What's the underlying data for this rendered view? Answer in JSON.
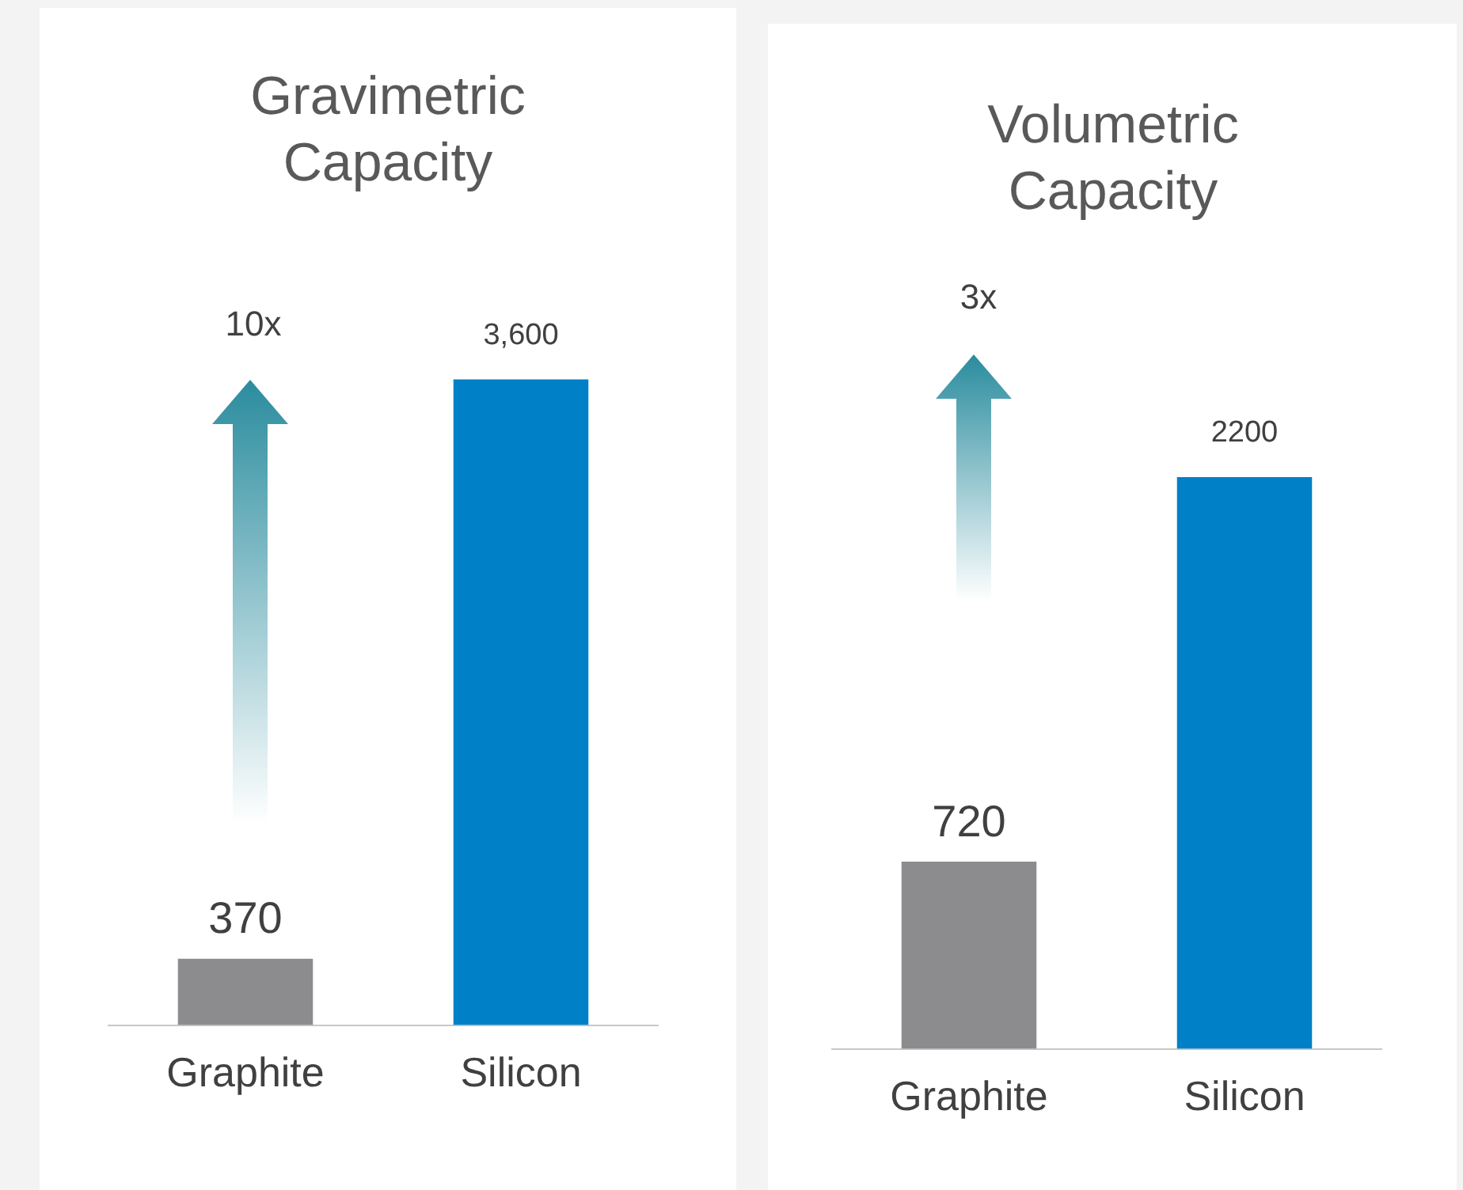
{
  "chart_data": [
    {
      "type": "bar",
      "title": "Gravimetric Capacity",
      "categories": [
        "Graphite",
        "Silicon"
      ],
      "values": [
        370,
        3600
      ],
      "colors": [
        "#8c8c8f",
        "#0080c6"
      ],
      "value_labels": [
        "370",
        "3,600"
      ],
      "annotations": [
        "10x"
      ],
      "grid": false,
      "legend": false,
      "tick_labels": "x"
    },
    {
      "type": "bar",
      "title": "Volumetric Capacity",
      "categories": [
        "Graphite",
        "Silicon"
      ],
      "values": [
        720,
        2200
      ],
      "colors": [
        "#8c8c8f",
        "#0080c6"
      ],
      "value_labels": [
        "720",
        "2200"
      ],
      "annotations": [
        "3x"
      ],
      "grid": false,
      "legend": false,
      "tick_labels": "x"
    }
  ]
}
